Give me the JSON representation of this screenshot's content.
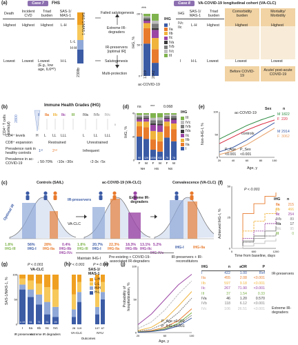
{
  "panel_a": {
    "label": "(a)",
    "case7": "Case 7",
    "fhs": "FHS",
    "case8": "Case 8",
    "vaclc": "VA-COVID-19 longitudinal cohort (VA-CLC)",
    "left_headers": [
      "Death",
      "Incident CVD",
      "Triad burden",
      "SAS-1/ MAS-1"
    ],
    "left_high": [
      "Highest",
      "Highest",
      "Highest",
      "L-H"
    ],
    "left_low": [
      "Lowest",
      "Lowest",
      "Lowest (E.g., low age, IL6ᴴᴼ)",
      "H-L"
    ],
    "center_top": "Failed salutogenesis",
    "center_extreme": "Extreme IR-degraders",
    "center_preservers": "IR-preservers [optimal IR]",
    "center_salutogenesis": "Salutogenesis",
    "center_multi": "Multi-protection",
    "colorbar_title": "SAS-1/MAS-1",
    "colorbar_labels": [
      "L-H",
      "L-L",
      "H-H",
      "H-L"
    ],
    "colorbar_n": "n",
    "colorbar_n_value": "2308",
    "bar_ylabel": "IHG, %",
    "bar_xlabel": "ac-COVID-19",
    "bar_n": [
      "1319",
      "2042"
    ],
    "bar_sig": "***",
    "ihg_title": "IHG",
    "ihg_legend": [
      "I",
      "IIa",
      "IIb",
      "IIc",
      "IVa",
      "IVb",
      "IVc",
      "III"
    ],
    "right_headers": [
      "IHG",
      "SAS-1/ MAS-1",
      "Triad burden",
      "Comorbidity burden",
      "Mortality/ Morbidity"
    ],
    "right_high_ihg": "IVc IIc",
    "right_high": [
      "L-H",
      "Highest",
      "Highest",
      "Highest"
    ],
    "right_low_ihg": "I",
    "right_low": [
      "H-L",
      "Lowest",
      "Lowest",
      "Lowest"
    ],
    "right_periods": [
      "Before COVID-19",
      "Acute/ post-acute COVID-19"
    ]
  },
  "panel_b": {
    "label": "(b)",
    "title": "Immune Health Grades (IHG)",
    "ylabel": "CD4⁺ T cells (cells/μl)",
    "grades": [
      "I",
      "IIa",
      "IIb",
      "IIc",
      "III",
      "IVa",
      "IVb",
      "IVc"
    ],
    "cd4_top": "2800",
    "cd4_bottom": "0",
    "cd4_levels_label": "CD4⁺ levels",
    "cd4_levels": [
      "H",
      "L",
      "LL",
      "LLL",
      "",
      "L",
      "LL",
      "LLL"
    ],
    "cd8_label": "CD8⁺ expansion",
    "cd8_values": [
      "Restrained",
      "Unrestrained"
    ],
    "prevalence_label": "Prevalence rank in healthy controls",
    "prevalence_values": [
      "1ˢᵗ",
      "2ⁿᵈ",
      "Infrequent"
    ],
    "covid_label": "Prevalence in ac-COVID-19",
    "covid_values": [
      "↓ 50-70%",
      "↑10x ↑30x",
      "↑2-3x ↑5x"
    ]
  },
  "panel_c": {
    "label": "(c)",
    "left_title": "Controls (SAIL)",
    "optimal_ir": "Optimal IR",
    "ir_preservers": "IR-preservers",
    "vaclc": "VA-CLC",
    "mid_title": "ac-COVID-19 (VA-CLC)",
    "extreme": "Extreme IR-degraders",
    "right_title": "Convalescence (VA-CLC)",
    "pct_left": [
      "1.8%",
      "56%",
      "28%",
      "0.4%"
    ],
    "lbl_left": [
      "IHG-III",
      "IHG-I",
      "IHG-IIa",
      "IHG-IIb IHG-IVc"
    ],
    "pct_mid": [
      "1.8%",
      "20.7%",
      "22.3%",
      "18.3%",
      "13.1%",
      "5.2%"
    ],
    "lbl_mid": [
      "IHG-III",
      "IHG-I",
      "IHG-IIa",
      "IHG-IIb",
      "IHG-IIc",
      "IHG-IVc"
    ],
    "lbl_right": [
      "IHG-I",
      "IHG-IIa"
    ],
    "bottom": [
      "Maintain IHG-I",
      "Pre-existing + COVID-19-associated IR-degraders",
      "IR-preservers + IR-reconstitutors"
    ]
  },
  "panel_d": {
    "label": "(d)",
    "ylabel": "IHG, %",
    "sig": [
      "ns",
      "***",
      "0.068"
    ],
    "sex": [
      "F",
      "M",
      "F",
      "M",
      "F",
      "M"
    ],
    "groups": [
      "NH",
      "HS",
      "NS"
    ],
    "n": [
      "90",
      "129",
      "1030",
      "932",
      "79",
      "78"
    ],
    "legend_title": "IHG",
    "legend": [
      "III",
      "IVc",
      "IVb",
      "IVa",
      "IIc",
      "IIb",
      "IIa",
      "I"
    ]
  },
  "panel_e": {
    "label": "(e)",
    "ylabel": "Non-IHG-I, %",
    "xlabel": "Age, y",
    "series_label_top": "ac-COVID-19",
    "series_label_bottom": "controls",
    "legend_headers": [
      "Sex",
      "n"
    ],
    "legend_rows": [
      [
        "M",
        "1822"
      ],
      [
        "F",
        "220"
      ],
      [
        "M",
        "2914"
      ],
      [
        "F",
        "3062"
      ]
    ],
    "p_age": "P_Age",
    "p_sex": "P_Sex",
    "p_vals": [
      "<0.001",
      "<0.001"
    ]
  },
  "panel_f": {
    "label": "(f)",
    "ylabel": "Achieved IHG-I, %",
    "xlabel": "Time from baseline, days",
    "p_value": "P < 0.001",
    "legend_headers": [
      "IHG",
      "n"
    ],
    "legend_rows": [
      [
        "IIa",
        "215"
      ],
      [
        "IIb",
        "466"
      ],
      [
        "IIc",
        "254"
      ],
      [
        "IVb",
        "89"
      ],
      [
        "IVa",
        "17"
      ],
      [
        "IVc",
        "95"
      ],
      [
        "III",
        "0"
      ]
    ]
  },
  "panel_g": {
    "label": "(g)",
    "p_value": "P < 0.001",
    "ylabel": "SAS-1/MAS-1, %",
    "title": "VA-CLC",
    "n": [
      "n 19",
      "51",
      "71",
      "51",
      "29"
    ],
    "xcats": [
      "I",
      "IIa",
      "IIb",
      "IIc",
      "IVc"
    ],
    "groups": [
      "IR preservers",
      "extreme IR degraders"
    ]
  },
  "panel_h": {
    "label": "(h)",
    "p1": "P < 0.001",
    "p2": "P = 0.008",
    "legend_title": "SAS-1/ MAS-1",
    "legend": [
      "L-H",
      "L-L",
      "H-H",
      "H-L"
    ],
    "n": [
      "28",
      "119",
      "107",
      "67"
    ],
    "groups": [
      "VA-CLC",
      "NYU"
    ],
    "xlabel": "Outcomes"
  },
  "panel_i": {
    "label": "(i)"
  },
  "panel_j": {
    "label": "(j)",
    "ylabel": "Probability of hospitalization, %",
    "xlabel": "Age, y",
    "p_age": "P_Age <0.001",
    "p_ihg": "P_IHG <0.001",
    "table_headers": [
      "IHG",
      "n",
      "aOR",
      "P"
    ],
    "rows": [
      [
        "I",
        "422",
        "1.00",
        "Ref"
      ],
      [
        "IIa",
        "455",
        "2.08",
        "<0.001"
      ],
      [
        "IIb",
        "597",
        "9.18",
        "<0.001"
      ],
      [
        "IIc",
        "267",
        "71.90",
        "<0.001"
      ],
      [
        "III",
        "37",
        "1.54",
        "0.33"
      ],
      [
        "IVa",
        "46",
        "1.20",
        "0.570"
      ],
      [
        "IVb",
        "118",
        "6.12",
        "<0.001"
      ],
      [
        "IVc",
        "106",
        "26.51",
        "<0.001"
      ]
    ],
    "annot_preservers": "IR-preservers",
    "annot_degraders": "Extreme IR-degraders"
  },
  "colors": {
    "I": "#3b5ba5",
    "IIa": "#e87a2c",
    "IIb": "#f0b43c",
    "IIc": "#9b46a5",
    "III": "#7fb34d",
    "IVa": "#3a3a3a",
    "IVb": "#7c7c7c",
    "IVc": "#bdbdbd",
    "case": "#8c6fb0"
  },
  "chart_data": [
    {
      "type": "bar",
      "panel": "a",
      "categories": [
        "1319",
        "2042"
      ],
      "series": [
        {
          "name": "I",
          "values": [
            52,
            21
          ]
        },
        {
          "name": "IIa",
          "values": [
            25,
            22
          ]
        },
        {
          "name": "IIb",
          "values": [
            8,
            18
          ]
        },
        {
          "name": "IIc",
          "values": [
            4,
            13
          ]
        },
        {
          "name": "IVa",
          "values": [
            2,
            3
          ]
        },
        {
          "name": "IVb",
          "values": [
            3,
            7
          ]
        },
        {
          "name": "IVc",
          "values": [
            2,
            5
          ]
        },
        {
          "name": "III",
          "values": [
            4,
            11
          ]
        }
      ],
      "ylabel": "IHG, %",
      "xlabel": "ac-COVID-19",
      "ylim": [
        0,
        100
      ]
    },
    {
      "type": "bar",
      "panel": "d",
      "categories": [
        "F",
        "M",
        "F",
        "M",
        "F",
        "M"
      ],
      "series": [
        {
          "name": "I",
          "values": [
            50,
            45,
            22,
            18,
            48,
            40
          ]
        },
        {
          "name": "IIa",
          "values": [
            22,
            25,
            22,
            22,
            24,
            26
          ]
        },
        {
          "name": "IIb",
          "values": [
            10,
            12,
            18,
            20,
            10,
            12
          ]
        },
        {
          "name": "IIc",
          "values": [
            5,
            6,
            13,
            14,
            6,
            8
          ]
        },
        {
          "name": "IVa",
          "values": [
            2,
            2,
            3,
            3,
            2,
            3
          ]
        },
        {
          "name": "IVb",
          "values": [
            4,
            4,
            7,
            8,
            4,
            5
          ]
        },
        {
          "name": "IVc",
          "values": [
            3,
            3,
            5,
            6,
            3,
            3
          ]
        },
        {
          "name": "III",
          "values": [
            4,
            3,
            10,
            9,
            3,
            3
          ]
        }
      ],
      "ylabel": "IHG, %",
      "ylim": [
        0,
        100
      ]
    },
    {
      "type": "line",
      "panel": "e",
      "x": [
        20,
        40,
        60,
        80,
        100
      ],
      "series": [
        {
          "name": "M",
          "values": [
            40,
            55,
            70,
            82,
            92
          ]
        },
        {
          "name": "F",
          "values": [
            30,
            45,
            60,
            72,
            82
          ]
        },
        {
          "name": "M",
          "values": [
            12,
            22,
            38,
            58,
            76
          ]
        },
        {
          "name": "F",
          "values": [
            6,
            14,
            28,
            46,
            64
          ]
        }
      ],
      "ylabel": "Non-IHG-I, %",
      "xlabel": "Age, y",
      "ylim": [
        0,
        100
      ]
    },
    {
      "type": "line",
      "panel": "f",
      "x": [
        0,
        300,
        600,
        900,
        1200
      ],
      "series": [
        {
          "name": "IIa",
          "values": [
            0,
            28,
            36,
            42,
            45
          ]
        },
        {
          "name": "IIb",
          "values": [
            0,
            14,
            22,
            28,
            32
          ]
        },
        {
          "name": "IIc",
          "values": [
            0,
            8,
            14,
            20,
            24
          ]
        },
        {
          "name": "IVb",
          "values": [
            0,
            6,
            10,
            14,
            18
          ]
        },
        {
          "name": "IVa",
          "values": [
            0,
            5,
            8,
            10,
            12
          ]
        },
        {
          "name": "IVc",
          "values": [
            0,
            2,
            4,
            6,
            8
          ]
        }
      ],
      "ylabel": "Achieved IHG-I, %",
      "xlabel": "Time from baseline, days",
      "ylim": [
        0,
        50
      ]
    },
    {
      "type": "bar",
      "panel": "g",
      "categories": [
        "I",
        "IIa",
        "IIb",
        "IIc",
        "IVc"
      ],
      "series": [
        {
          "name": "H-L",
          "values": [
            70,
            55,
            40,
            20,
            15
          ]
        },
        {
          "name": "H-H",
          "values": [
            10,
            15,
            20,
            25,
            20
          ]
        },
        {
          "name": "L-L",
          "values": [
            12,
            18,
            22,
            30,
            35
          ]
        },
        {
          "name": "L-H",
          "values": [
            8,
            12,
            18,
            25,
            30
          ]
        }
      ],
      "ylabel": "SAS-1/MAS-1, %",
      "ylim": [
        0,
        100
      ]
    },
    {
      "type": "bar",
      "panel": "h",
      "categories": [
        "28",
        "119",
        "107",
        "67"
      ],
      "series": [
        {
          "name": "H-L",
          "values": [
            15,
            45,
            20,
            50
          ]
        },
        {
          "name": "H-H",
          "values": [
            15,
            20,
            15,
            15
          ]
        },
        {
          "name": "L-L",
          "values": [
            30,
            20,
            35,
            20
          ]
        },
        {
          "name": "L-H",
          "values": [
            40,
            15,
            30,
            15
          ]
        }
      ],
      "ylim": [
        0,
        100
      ]
    },
    {
      "type": "line",
      "panel": "j",
      "x": [
        20,
        40,
        60,
        80,
        100
      ],
      "series": [
        {
          "name": "IIc",
          "values": [
            12,
            28,
            50,
            72,
            88
          ]
        },
        {
          "name": "IVc",
          "values": [
            6,
            16,
            34,
            58,
            78
          ]
        },
        {
          "name": "IIb",
          "values": [
            3,
            8,
            20,
            40,
            62
          ]
        },
        {
          "name": "IVb",
          "values": [
            2,
            5,
            14,
            30,
            52
          ]
        },
        {
          "name": "IIa",
          "values": [
            1,
            3,
            8,
            18,
            36
          ]
        },
        {
          "name": "III",
          "values": [
            1,
            2,
            6,
            14,
            30
          ]
        },
        {
          "name": "IVa",
          "values": [
            0.5,
            2,
            5,
            12,
            26
          ]
        },
        {
          "name": "I",
          "values": [
            0.5,
            1.5,
            4,
            10,
            22
          ]
        }
      ],
      "ylabel": "Probability of hospitalization, %",
      "xlabel": "Age, y",
      "ylim": [
        0,
        100
      ]
    }
  ]
}
